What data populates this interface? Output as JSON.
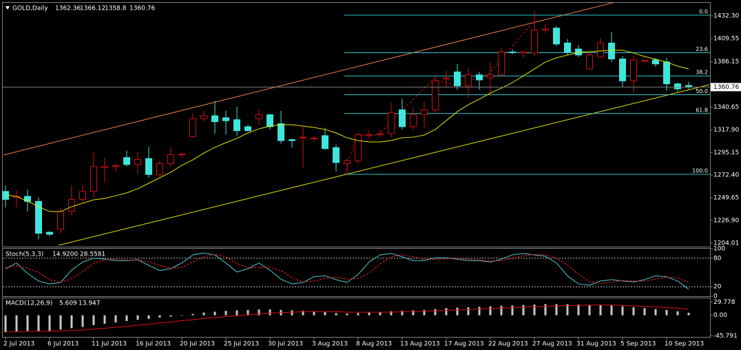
{
  "chart_data": [
    {
      "type": "candlestick",
      "title": "GOLD,Daily",
      "categories": [
        "2 Jul 2013",
        null,
        null,
        null,
        "6 Jul 2013",
        null,
        null,
        null,
        "11 Jul 2013",
        null,
        null,
        null,
        "16 Jul 2013",
        null,
        null,
        null,
        "20 Jul 2013",
        null,
        null,
        null,
        "25 Jul 2013",
        null,
        null,
        null,
        "30 Jul 2013",
        null,
        null,
        null,
        "3 Aug 2013",
        null,
        null,
        null,
        "8 Aug 2013",
        null,
        null,
        null,
        "13 Aug 2013",
        null,
        null,
        null,
        "17 Aug 2013",
        null,
        null,
        null,
        "22 Aug 2013",
        null,
        null,
        null,
        "27 Aug 2013",
        null,
        null,
        null,
        "31 Aug 2013",
        null,
        null,
        null,
        "5 Sep 2013",
        null,
        null,
        null,
        "10 Sep 2013",
        null,
        null
      ],
      "open": [
        1256,
        1250,
        1251,
        1246,
        1215,
        1218,
        1236,
        1248,
        1256,
        1280,
        1281,
        1290,
        1283,
        1289,
        1273,
        1284,
        1293,
        1311,
        1329,
        1332,
        1330,
        1328,
        1321,
        1329,
        1333,
        1324,
        1308,
        1310,
        1309,
        1312,
        1300,
        1284,
        1287,
        1312,
        1313,
        1314,
        1338,
        1321,
        1333,
        1338,
        1369,
        1376,
        1362,
        1373,
        1370,
        1373,
        1396,
        1395,
        1395,
        1418,
        1420,
        1405,
        1399,
        1379,
        1391,
        1405,
        1389,
        1367,
        1387,
        1388,
        1386,
        1364,
        1362.36
      ],
      "high": [
        1262,
        1257,
        1258,
        1250,
        1216,
        1240,
        1262,
        1262,
        1296,
        1290,
        1284,
        1297,
        1296,
        1301,
        1287,
        1300,
        1294,
        1334,
        1337,
        1347,
        1337,
        1341,
        1323,
        1338,
        1334,
        1337,
        1309,
        1321,
        1312,
        1320,
        1303,
        1289,
        1315,
        1318,
        1318,
        1345,
        1349,
        1340,
        1346,
        1373,
        1377,
        1384,
        1380,
        1376,
        1386,
        1400,
        1399,
        1397,
        1437,
        1425,
        1422,
        1409,
        1403,
        1396,
        1410,
        1416,
        1392,
        1392,
        1388,
        1390,
        1390,
        1365,
        1366.12
      ],
      "low": [
        1240,
        1240,
        1236,
        1208,
        1211,
        1214,
        1232,
        1244,
        1250,
        1265,
        1276,
        1281,
        1274,
        1270,
        1270,
        1281,
        1290,
        1310,
        1326,
        1314,
        1313,
        1312,
        1316,
        1323,
        1318,
        1304,
        1300,
        1280,
        1306,
        1298,
        1276,
        1272,
        1284,
        1309,
        1310,
        1310,
        1318,
        1318,
        1320,
        1335,
        1360,
        1358,
        1350,
        1358,
        1352,
        1370,
        1394,
        1390,
        1392,
        1415,
        1402,
        1393,
        1391,
        1378,
        1390,
        1386,
        1361,
        1355,
        1386,
        1381,
        1357,
        1356,
        1358.8
      ],
      "close": [
        1248,
        1251,
        1246,
        1214,
        1213,
        1236,
        1248,
        1256,
        1281,
        1281,
        1282,
        1283,
        1288,
        1273,
        1284,
        1293,
        1293.5,
        1329,
        1332,
        1326,
        1327,
        1317,
        1317,
        1333,
        1321,
        1307,
        1307,
        1310.5,
        1309.5,
        1299,
        1285,
        1287,
        1313,
        1313,
        1314,
        1335,
        1321,
        1333,
        1338,
        1367,
        1370,
        1362,
        1373,
        1368,
        1373,
        1396,
        1395.5,
        1396,
        1418,
        1419,
        1404,
        1396,
        1393,
        1393,
        1405,
        1389,
        1367,
        1388,
        1387.5,
        1384,
        1364,
        1359,
        1360.76
      ],
      "up_color": "#d01010",
      "down_color": "#3ee6dc",
      "ma": {
        "color": "#e6e600",
        "values": [
          1252.4,
          1251.1,
          1246.2,
          1240.7,
          1235.8,
          1235.8,
          1240.7,
          1244.1,
          1247.6,
          1249.0,
          1251.7,
          1254.5,
          1258.7,
          1264.2,
          1269.7,
          1275.3,
          1282.2,
          1287.7,
          1294.6,
          1300.2,
          1305.0,
          1309.2,
          1314.7,
          1318.8,
          1321.6,
          1323.0,
          1323.0,
          1321.6,
          1320.2,
          1318.2,
          1314.7,
          1309.9,
          1307.1,
          1305.7,
          1305.7,
          1307.1,
          1309.9,
          1310.5,
          1312.6,
          1318.2,
          1327.1,
          1336.1,
          1343.1,
          1348.6,
          1354.8,
          1359.7,
          1365.2,
          1372.1,
          1379.0,
          1385.9,
          1390.1,
          1392.9,
          1395.6,
          1396.3,
          1397.0,
          1397.7,
          1397.7,
          1394.9,
          1391.5,
          1388.7,
          1385.9,
          1381.8,
          1379.0
        ]
      },
      "fib_levels": [
        {
          "value": 0,
          "label": "0.0"
        },
        23.6,
        38.2,
        {
          "value": 50,
          "label": "50.0"
        },
        61.8,
        {
          "value": 100,
          "label": "100.0"
        }
      ],
      "ylim": [
        1200.55,
        1444.75
      ],
      "yticks": [
        {
          "value": 1432.3,
          "label": "1432.30"
        },
        1409.55,
        1386.15,
        1340.65,
        {
          "value": 1317.9,
          "label": "1317.90"
        },
        1295.15,
        {
          "value": 1272.4,
          "label": "1272.40"
        },
        1249.65,
        {
          "value": 1226.9,
          "label": "1226.90"
        },
        1204.01
      ]
    },
    {
      "type": "line",
      "title": "Stoch(5,3,3)",
      "last_label": "14.9200",
      "series": [
        {
          "color": "#4fc9d0",
          "values": [
            58,
            70,
            48,
            32,
            26,
            29,
            55,
            72,
            80,
            78,
            75,
            75,
            77,
            65,
            54,
            58,
            70,
            87,
            91,
            87,
            70,
            51,
            58,
            70,
            55,
            36,
            26,
            29,
            41,
            43,
            35,
            29,
            46,
            72,
            87,
            90,
            83,
            75,
            75,
            81,
            81,
            78,
            75,
            75,
            72,
            78,
            87,
            90,
            87,
            84,
            70,
            43,
            26,
            23,
            32,
            35,
            32,
            30,
            35,
            43,
            41,
            32,
            14.92
          ]
        },
        {
          "color": "#ff2020",
          "dashed": true,
          "values": [
            60,
            64,
            59,
            50,
            35,
            29,
            37,
            52,
            69,
            77,
            78,
            76,
            76,
            72,
            65,
            59,
            61,
            72,
            83,
            88,
            83,
            69,
            60,
            60,
            61,
            54,
            39,
            30,
            32,
            38,
            40,
            36,
            37,
            49,
            68,
            83,
            87,
            83,
            78,
            77,
            79,
            80,
            78,
            76,
            74,
            75,
            79,
            85,
            88,
            87,
            80,
            66,
            46,
            31,
            27,
            30,
            33,
            32,
            32,
            36,
            40,
            39,
            28.5581
          ]
        }
      ],
      "levels": [
        80,
        20
      ],
      "ylim": [
        0,
        100
      ],
      "yticks": [
        100,
        80,
        20,
        0
      ]
    },
    {
      "type": "bar",
      "title": "MACD(12,26,9)",
      "values": [
        -38,
        -36,
        -35,
        -36,
        -35,
        -32,
        -29,
        -26,
        -22,
        -19,
        -16,
        -13,
        -10,
        -8,
        -5,
        -3,
        -1,
        3,
        6,
        8,
        10,
        11,
        12,
        13,
        13,
        12,
        11,
        10,
        9,
        7,
        5,
        4,
        5,
        6,
        7,
        9,
        10,
        11,
        12,
        14,
        16,
        17,
        18,
        19,
        20,
        21,
        22,
        23,
        24,
        25,
        25,
        25,
        24,
        23,
        23,
        22,
        20,
        18,
        16,
        14,
        12,
        9,
        5.609
      ],
      "color": "#c8c8c8",
      "signal": {
        "color": "#e01010",
        "values": [
          -37,
          -37,
          -36,
          -36,
          -36,
          -35,
          -34,
          -33,
          -31,
          -29,
          -27,
          -25,
          -22,
          -20,
          -17,
          -15,
          -12,
          -10,
          -7,
          -5,
          -3,
          -1,
          1,
          3,
          5,
          6,
          7,
          8,
          8,
          8,
          8,
          7,
          7,
          7,
          7,
          7,
          8,
          8,
          9,
          10,
          11,
          12,
          13,
          14,
          15,
          16,
          17,
          18,
          19,
          20,
          21,
          22,
          22,
          23,
          23,
          23,
          22,
          21,
          20,
          19,
          17,
          16,
          13.947
        ]
      },
      "ylim": [
        -50,
        38
      ],
      "yticks": [
        29.778,
        {
          "value": 0,
          "label": "0.00"
        },
        -45.791
      ]
    }
  ]
}
